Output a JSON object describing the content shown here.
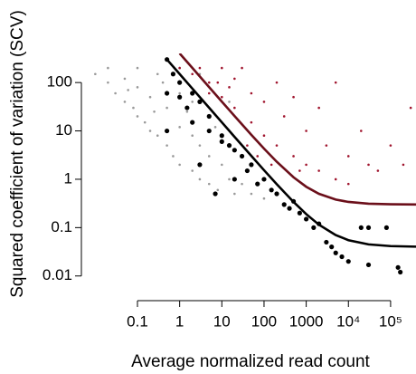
{
  "chart_data": {
    "type": "scatter",
    "xlabel": "Average normalized read count",
    "ylabel": "Squared coefficient of variation (SCV)",
    "xlog": true,
    "ylog": true,
    "xlim": [
      0.006,
      400000
    ],
    "ylim": [
      0.004,
      400
    ],
    "xticks": [
      0.1,
      1,
      10,
      100,
      1000,
      {
        "value": 10000,
        "label": "10⁴"
      },
      {
        "value": 100000,
        "label": "10⁵"
      }
    ],
    "yticks": [
      0.01,
      0.1,
      1,
      10,
      100
    ],
    "series": [
      {
        "color": "#999999",
        "size": 1.3,
        "x": [
          0.01,
          0.02,
          0.03,
          0.05,
          0.05,
          0.08,
          0.1,
          0.1,
          0.15,
          0.2,
          0.2,
          0.3,
          0.3,
          0.5,
          0.5,
          0.7,
          1,
          1,
          1,
          2,
          2,
          2,
          3,
          3,
          5,
          5,
          5,
          8,
          10,
          10,
          15,
          20,
          20,
          30,
          50,
          50,
          100,
          100,
          200,
          300,
          0.02,
          0.1,
          1,
          3,
          0.4,
          1.5,
          7,
          15,
          0.06,
          0.25
        ],
        "values": [
          150,
          100,
          60,
          40,
          120,
          30,
          20,
          80,
          15,
          10,
          50,
          8,
          150,
          5,
          30,
          3,
          2,
          12,
          60,
          1.5,
          8,
          40,
          1,
          5,
          0.8,
          3,
          20,
          0.6,
          2,
          8,
          1,
          0.5,
          4,
          0.8,
          0.5,
          2,
          0.4,
          1,
          0.5,
          0.3,
          200,
          200,
          200,
          150,
          100,
          25,
          12,
          40,
          70,
          25
        ]
      },
      {
        "color": "#a0142d",
        "size": 1.3,
        "x": [
          1,
          2,
          3,
          5,
          5,
          10,
          10,
          20,
          20,
          30,
          50,
          50,
          100,
          100,
          200,
          200,
          300,
          500,
          500,
          1000,
          1000,
          2000,
          2000,
          3000,
          5000,
          5000,
          10000,
          10000,
          20000,
          30000,
          50000,
          100000,
          200000,
          300000,
          40,
          70,
          150,
          700,
          15,
          8
        ],
        "values": [
          200,
          150,
          200,
          100,
          60,
          200,
          50,
          30,
          120,
          200,
          15,
          60,
          8,
          40,
          5,
          100,
          20,
          3,
          50,
          2,
          10,
          1.5,
          30,
          5,
          1,
          100,
          3,
          0.8,
          10,
          2,
          1.5,
          5,
          2,
          30,
          5,
          3,
          2,
          1.5,
          80,
          100
        ]
      },
      {
        "color": "#000000",
        "size": 2.6,
        "x": [
          0.5,
          0.5,
          0.5,
          0.7,
          1,
          1,
          1.5,
          2,
          2,
          3,
          3,
          5,
          5,
          7,
          10,
          10,
          15,
          20,
          20,
          30,
          40,
          50,
          70,
          100,
          150,
          200,
          300,
          400,
          500,
          700,
          1000,
          1500,
          2000,
          3000,
          4000,
          5000,
          7000,
          10000,
          20000,
          30000,
          30000,
          80000,
          150000,
          170000
        ],
        "values": [
          300,
          60,
          10,
          150,
          100,
          50,
          30,
          60,
          15,
          2,
          40,
          20,
          10,
          0.5,
          8,
          6,
          5,
          4,
          1,
          3,
          1.5,
          2,
          0.8,
          1,
          0.6,
          0.5,
          0.3,
          0.25,
          0.35,
          0.2,
          0.15,
          0.1,
          0.12,
          0.05,
          0.04,
          0.03,
          0.025,
          0.02,
          0.1,
          0.017,
          0.1,
          0.1,
          0.015,
          0.012
        ]
      }
    ],
    "curves": [
      {
        "color": "#6b0f1a",
        "x": [
          1,
          2,
          5,
          10,
          20,
          50,
          100,
          200,
          500,
          1000,
          2000,
          5000,
          10000,
          30000,
          100000,
          400000
        ],
        "values": [
          400.3,
          200.3,
          80.3,
          40.3,
          20.3,
          8.3,
          4.3,
          2.3,
          1.1,
          0.7,
          0.5,
          0.38,
          0.34,
          0.313,
          0.304,
          0.301
        ]
      },
      {
        "color": "#000000",
        "x": [
          0.5,
          1,
          2,
          5,
          10,
          20,
          50,
          100,
          200,
          500,
          1000,
          2000,
          5000,
          10000,
          30000,
          100000,
          400000
        ],
        "values": [
          300.04,
          150.04,
          75.04,
          30.04,
          15.04,
          7.54,
          3.04,
          1.54,
          0.79,
          0.34,
          0.19,
          0.115,
          0.07,
          0.055,
          0.045,
          0.0415,
          0.0404
        ]
      }
    ]
  }
}
